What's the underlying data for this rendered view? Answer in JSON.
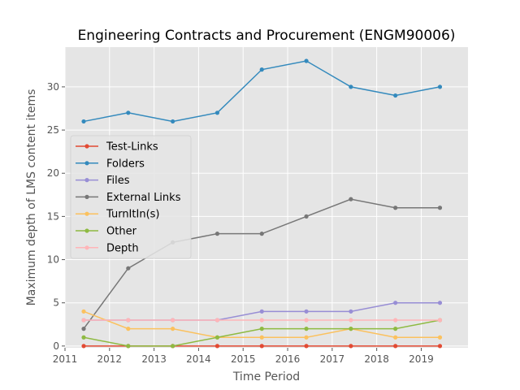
{
  "chart_data": {
    "type": "line",
    "title": "Engineering Contracts and Procurement (ENGM90006)",
    "xlabel": "Time Period",
    "ylabel": "Maximum depth of LMS content items",
    "xlim": [
      2011,
      2020.05
    ],
    "ylim": [
      -0.2,
      34.6
    ],
    "xticks": [
      2011,
      2012,
      2013,
      2014,
      2015,
      2016,
      2017,
      2018,
      2019
    ],
    "yticks": [
      0,
      5,
      10,
      15,
      20,
      25,
      30
    ],
    "grid": true,
    "legend_position": "center-left",
    "x": [
      2011.42,
      2012.42,
      2013.42,
      2014.42,
      2015.42,
      2016.42,
      2017.42,
      2018.42,
      2019.42
    ],
    "series": [
      {
        "name": "Test-Links",
        "color": "#E24A33",
        "values": [
          0,
          0,
          0,
          0,
          0,
          0,
          0,
          0,
          0
        ]
      },
      {
        "name": "Folders",
        "color": "#348ABD",
        "values": [
          26,
          27,
          26,
          27,
          32,
          33,
          30,
          29,
          30
        ]
      },
      {
        "name": "Files",
        "color": "#988ED5",
        "values": [
          3,
          3,
          3,
          3,
          4,
          4,
          4,
          5,
          5
        ]
      },
      {
        "name": "External Links",
        "color": "#777777",
        "values": [
          2,
          9,
          12,
          13,
          13,
          15,
          17,
          16,
          16
        ]
      },
      {
        "name": "TurnItIn(s)",
        "color": "#FBC15E",
        "values": [
          4,
          2,
          2,
          1,
          1,
          1,
          2,
          1,
          1
        ]
      },
      {
        "name": "Other",
        "color": "#8EBA42",
        "values": [
          1,
          0,
          0,
          1,
          2,
          2,
          2,
          2,
          3
        ]
      },
      {
        "name": "Depth",
        "color": "#FFB5B8",
        "values": [
          3,
          3,
          3,
          3,
          3,
          3,
          3,
          3,
          3
        ]
      }
    ]
  }
}
